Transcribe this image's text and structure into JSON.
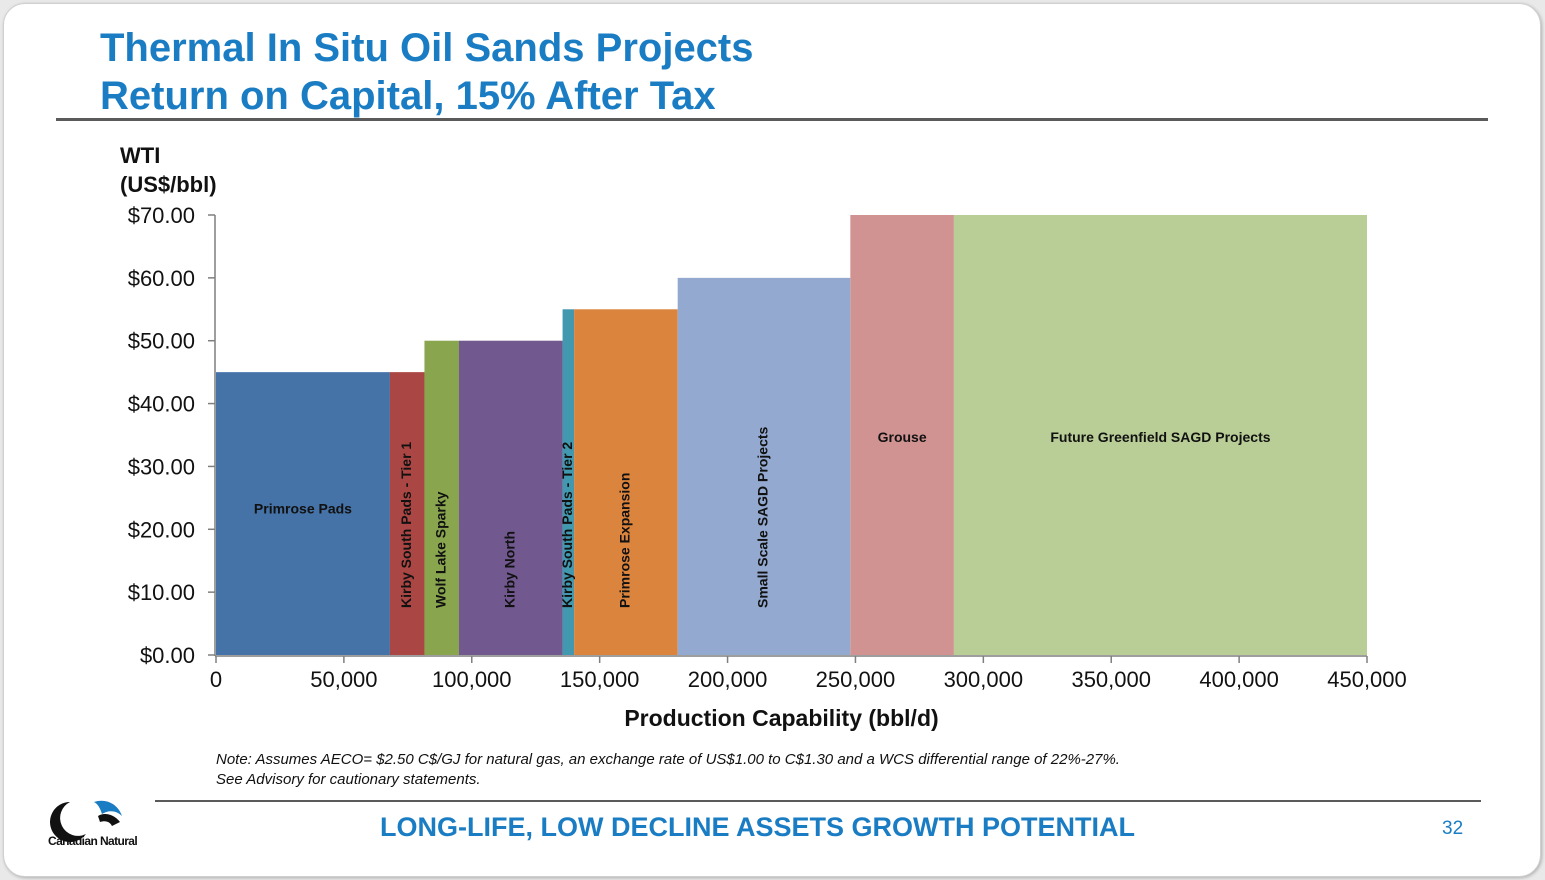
{
  "slide": {
    "title_line1": "Thermal In Situ Oil Sands Projects",
    "title_line2": "Return on Capital, 15% After Tax",
    "note_line1": "Note: Assumes AECO= $2.50 C$/GJ for natural gas, an exchange rate of US$1.00 to C$1.30 and a WCS differential range of 22%-27%.",
    "note_line2": "See Advisory for cautionary statements.",
    "logo_text": "Canadian Natural",
    "tagline": "LONG-LIFE, LOW DECLINE ASSETS GROWTH POTENTIAL",
    "page_number": "32"
  },
  "chart_data": {
    "type": "bar",
    "variant": "variable-width step bars",
    "ylabel_line1": "WTI",
    "ylabel_line2": "(US$/bbl)",
    "xlabel": "Production Capability (bbl/d)",
    "xlim": [
      0,
      450000
    ],
    "ylim": [
      0,
      70
    ],
    "x_ticks": [
      0,
      50000,
      100000,
      150000,
      200000,
      250000,
      300000,
      350000,
      400000,
      450000
    ],
    "x_tick_labels": [
      "0",
      "50,000",
      "100,000",
      "150,000",
      "200,000",
      "250,000",
      "300,000",
      "350,000",
      "400,000",
      "450,000"
    ],
    "y_ticks": [
      0,
      10,
      20,
      30,
      40,
      50,
      60,
      70
    ],
    "y_tick_labels": [
      "$0.00",
      "$10.00",
      "$20.00",
      "$30.00",
      "$40.00",
      "$50.00",
      "$60.00",
      "$70.00"
    ],
    "grid": false,
    "legend": "none",
    "bars": [
      {
        "name": "Primrose Pads",
        "x_start": 0,
        "x_end": 68000,
        "value": 45,
        "color": "#4572a7",
        "label_vertical": false
      },
      {
        "name": "Kirby South Pads - Tier 1",
        "x_start": 68000,
        "x_end": 81500,
        "value": 45,
        "color": "#aa4643",
        "label_vertical": true
      },
      {
        "name": "Wolf Lake Sparky",
        "x_start": 81500,
        "x_end": 95000,
        "value": 50,
        "color": "#89a54e",
        "label_vertical": true
      },
      {
        "name": "Kirby North",
        "x_start": 95000,
        "x_end": 135500,
        "value": 50,
        "color": "#71588f",
        "label_vertical": true
      },
      {
        "name": "Kirby South Pads - Tier 2",
        "x_start": 135500,
        "x_end": 140000,
        "value": 55,
        "color": "#4198af",
        "label_vertical": true
      },
      {
        "name": "Primrose Expansion",
        "x_start": 140000,
        "x_end": 180500,
        "value": 55,
        "color": "#db843d",
        "label_vertical": true
      },
      {
        "name": "Small Scale SAGD Projects",
        "x_start": 180500,
        "x_end": 248000,
        "value": 60,
        "color": "#93a9cf",
        "label_vertical": true
      },
      {
        "name": "Grouse",
        "x_start": 248000,
        "x_end": 288500,
        "value": 70,
        "color": "#d19392",
        "label_vertical": false
      },
      {
        "name": "Future Greenfield SAGD Projects",
        "x_start": 288500,
        "x_end": 450000,
        "value": 70,
        "color": "#b9cd96",
        "label_vertical": false
      }
    ]
  }
}
